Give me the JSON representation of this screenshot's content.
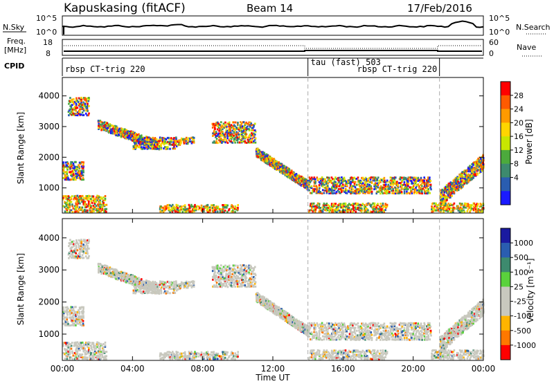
{
  "header": {
    "station": "Kapuskasing (fitACF)",
    "beam": "Beam 14",
    "date": "17/Feb/2016"
  },
  "noise_panel": {
    "left_label": "N.Sky",
    "left_ticks": [
      "10^5",
      "10^0"
    ],
    "right_ticks": [
      "10^5",
      "10^0"
    ],
    "right_label": "N.Search"
  },
  "freq_panel": {
    "left_label_1": "Freq.",
    "left_label_2": "[MHz]",
    "left_ticks": [
      "18",
      "8"
    ],
    "right_ticks": [
      "60",
      "0"
    ],
    "right_label": "Nave"
  },
  "cpid": {
    "label": "CPID",
    "segments": [
      {
        "name": "rbsp CT-trig 220",
        "start_hour": 0.0,
        "end_hour": 14.0
      },
      {
        "name": "tau (fast) 503",
        "start_hour": 14.0,
        "end_hour": 21.5
      },
      {
        "name": "rbsp CT-trig 220",
        "start_hour": 21.5,
        "end_hour": 24.0
      }
    ]
  },
  "chart_data": [
    {
      "type": "heatmap",
      "name": "power",
      "ylabel": "Slant Range [km]",
      "yticks": [
        "4000",
        "3000",
        "2000",
        "1000"
      ],
      "ylim": [
        180,
        4600
      ],
      "xlim": [
        0,
        24
      ],
      "colorbar_label": "Power [dB]",
      "colorbar_ticks": [
        "28",
        "24",
        "20",
        "16",
        "12",
        "8",
        "4"
      ],
      "colorbar_colors": [
        "#ff0000",
        "#ff5a00",
        "#ff9a00",
        "#ffd500",
        "#c8e600",
        "#4caa3c",
        "#3d8a6e",
        "#2a5db0",
        "#1a1aff"
      ],
      "bands": [
        {
          "t": [
            0.0,
            1.2
          ],
          "r": [
            1300,
            1900
          ]
        },
        {
          "t": [
            0.3,
            1.5
          ],
          "r": [
            3400,
            4000
          ]
        },
        {
          "t": [
            2.0,
            5.5
          ],
          "r": [
            2300,
            3100
          ]
        },
        {
          "t": [
            4.0,
            6.5
          ],
          "r": [
            2300,
            2700
          ]
        },
        {
          "t": [
            6.5,
            7.5
          ],
          "r": [
            2400,
            2700
          ]
        },
        {
          "t": [
            8.5,
            11.0
          ],
          "r": [
            2500,
            3200
          ]
        },
        {
          "t": [
            11.0,
            14.0
          ],
          "r": [
            1000,
            2200
          ]
        },
        {
          "t": [
            14.0,
            21.0
          ],
          "r": [
            850,
            1400
          ]
        },
        {
          "t": [
            21.5,
            24.0
          ],
          "r": [
            700,
            2000
          ]
        },
        {
          "t": [
            0.0,
            2.5
          ],
          "r": [
            250,
            800
          ]
        },
        {
          "t": [
            5.5,
            10.0
          ],
          "r": [
            250,
            500
          ]
        },
        {
          "t": [
            14.0,
            18.5
          ],
          "r": [
            250,
            550
          ]
        },
        {
          "t": [
            21.0,
            24.0
          ],
          "r": [
            250,
            550
          ]
        }
      ]
    },
    {
      "type": "heatmap",
      "name": "velocity",
      "ylabel": "Slant Range [km]",
      "yticks": [
        "4000",
        "3000",
        "2000",
        "1000"
      ],
      "ylim": [
        180,
        4600
      ],
      "xlim": [
        0,
        24
      ],
      "xlabel": "Time UT",
      "xticks": [
        "00:00",
        "04:00",
        "08:00",
        "12:00",
        "16:00",
        "20:00",
        "00:00"
      ],
      "colorbar_label": "Velocity [m s⁻¹]",
      "colorbar_ticks": [
        "1000",
        "500",
        "100",
        "25",
        "-25",
        "-100",
        "-500",
        "-1000"
      ],
      "colorbar_colors": [
        "#1a1aa0",
        "#2a5db0",
        "#3d8a6e",
        "#5ad23c",
        "#c8c8be",
        "#c8c8be",
        "#ffb400",
        "#ff7800",
        "#ff0000"
      ]
    }
  ]
}
